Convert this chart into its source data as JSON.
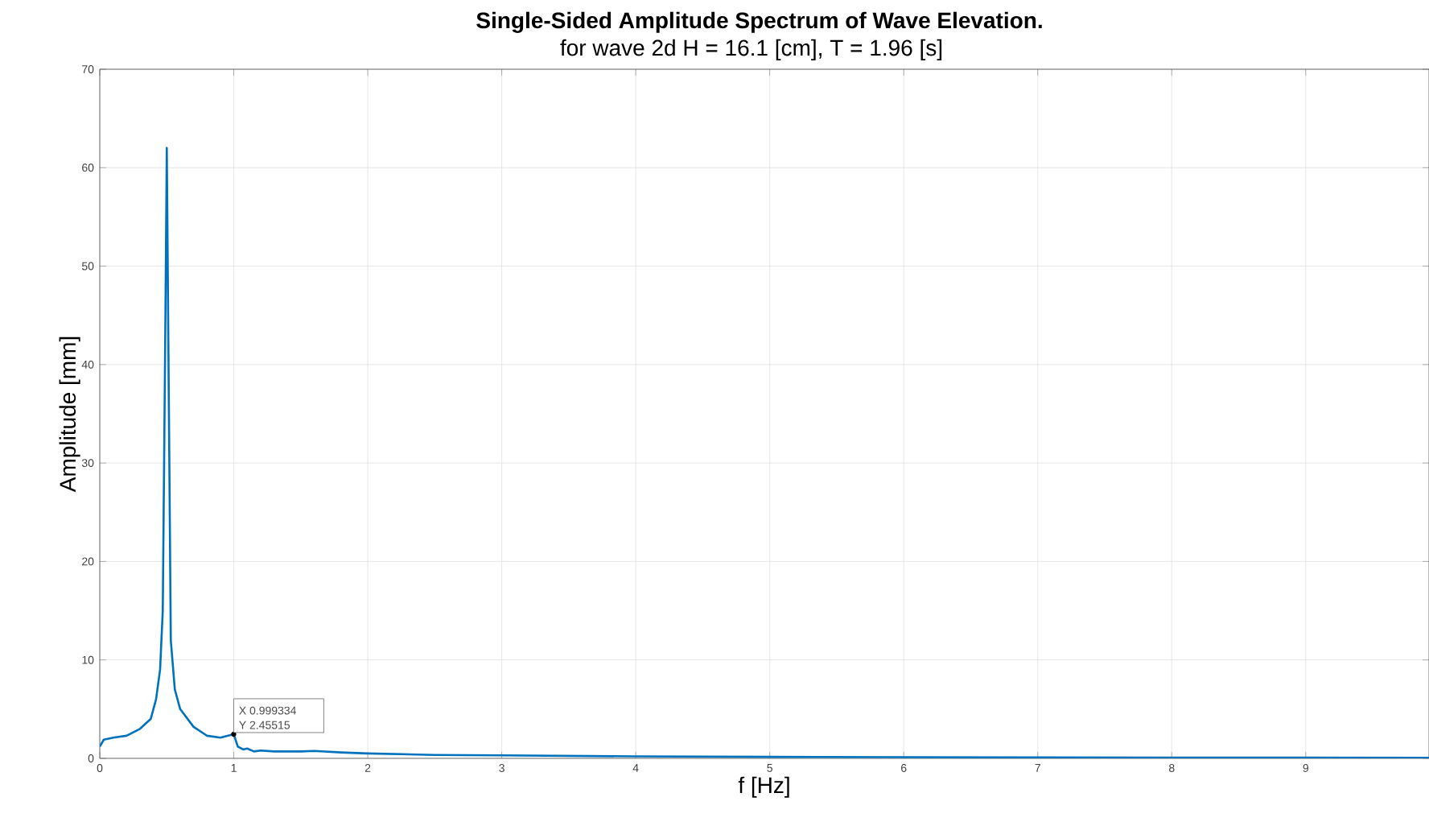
{
  "chart_data": {
    "type": "line",
    "title": "Single-Sided Amplitude Spectrum of Wave Elevation.",
    "subtitle": "for wave 2d H = 16.1 [cm], T = 1.96 [s]",
    "xlabel": "f [Hz]",
    "ylabel": "Amplitude [mm]",
    "series": [
      {
        "color": "#0072bd",
        "x": [
          0,
          0.03,
          0.1,
          0.2,
          0.3,
          0.38,
          0.42,
          0.45,
          0.47,
          0.49,
          0.5,
          0.51,
          0.53,
          0.56,
          0.6,
          0.7,
          0.8,
          0.9,
          0.999334,
          1.03,
          1.07,
          1.1,
          1.15,
          1.2,
          1.3,
          1.5,
          1.6,
          1.8,
          2,
          2.5,
          3,
          4,
          5,
          6,
          7,
          8,
          9,
          9.92
        ],
        "values": [
          1.2,
          1.9,
          2.1,
          2.3,
          3.0,
          4.0,
          6,
          9,
          15,
          45,
          62,
          45,
          12,
          7,
          5,
          3.2,
          2.3,
          2.1,
          2.45515,
          1.2,
          0.9,
          1.0,
          0.7,
          0.8,
          0.7,
          0.7,
          0.75,
          0.6,
          0.5,
          0.35,
          0.3,
          0.2,
          0.15,
          0.12,
          0.1,
          0.08,
          0.07,
          0.05
        ]
      }
    ],
    "annotations": [
      {
        "text": "X 0.999334",
        "x": 0.999334,
        "y": 2.45515
      },
      {
        "text": "Y 2.45515",
        "x": 0.999334,
        "y": 2.45515
      }
    ],
    "xlim": [
      0,
      9.92
    ],
    "ylim": [
      0,
      70
    ],
    "xticks": [
      0,
      1,
      2,
      3,
      4,
      5,
      6,
      7,
      8,
      9
    ],
    "yticks": [
      0,
      10,
      20,
      30,
      40,
      50,
      60,
      70
    ],
    "grid": true,
    "line_style": "solid",
    "marker": "none"
  }
}
